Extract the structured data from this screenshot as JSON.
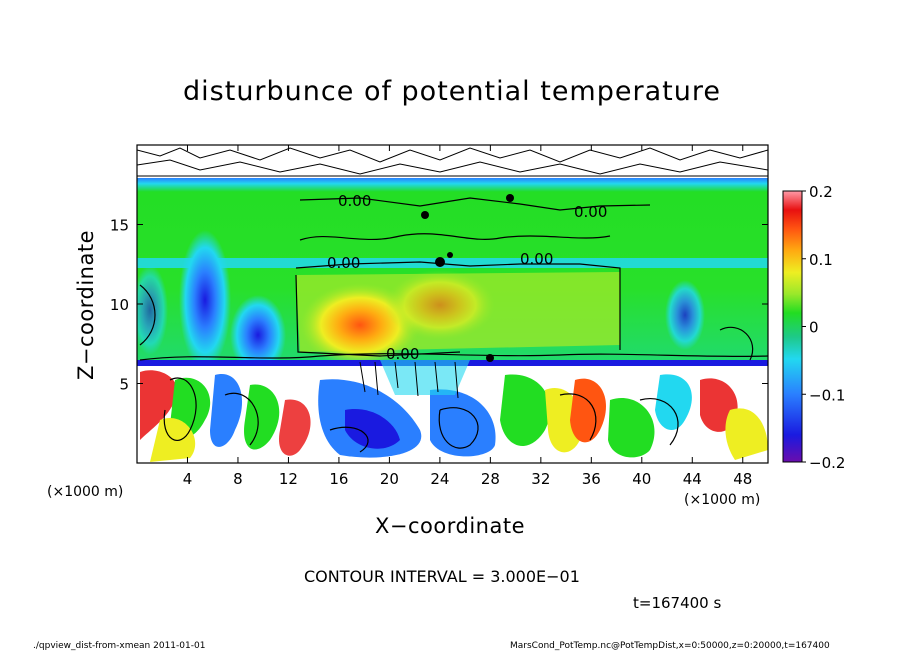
{
  "chart_data": {
    "type": "heatmap",
    "title": "disturbunce of potential temperature",
    "xlabel": "X−coordinate",
    "ylabel": "Z−coordinate",
    "x_unit_label": "(×1000 m)",
    "xlim": [
      0,
      50
    ],
    "ylim": [
      0,
      20
    ],
    "x_ticks": [
      4,
      8,
      12,
      16,
      20,
      24,
      28,
      32,
      36,
      40,
      44,
      48
    ],
    "y_ticks": [
      5,
      10,
      15
    ],
    "colorbar": {
      "range": [
        -0.2,
        0.2
      ],
      "tick_labels": [
        "0.2",
        "0.1",
        "0",
        "−0.1",
        "−0.2"
      ],
      "tick_values": [
        0.2,
        0.1,
        0,
        -0.1,
        -0.2
      ]
    },
    "contour_labels": [
      "0.00",
      "0.00",
      "0.00",
      "0.00",
      "0.00"
    ],
    "contour_interval": "CONTOUR INTERVAL = 3.000E−01",
    "time": "t=167400 s"
  },
  "footer": {
    "left": "./qpview_dist-from-xmean  2011-01-01",
    "right": "MarsCond_PotTemp.nc@PotTempDist,x=0:50000,z=0:20000,t=167400"
  },
  "colors": {
    "colormap": [
      "#6a0dad",
      "#1a1ae0",
      "#2a7fff",
      "#22d8f0",
      "#1ec98a",
      "#22dd22",
      "#9ae82a",
      "#eeee22",
      "#ffaa11",
      "#ff5511",
      "#e81010",
      "#ff9aa8"
    ]
  }
}
